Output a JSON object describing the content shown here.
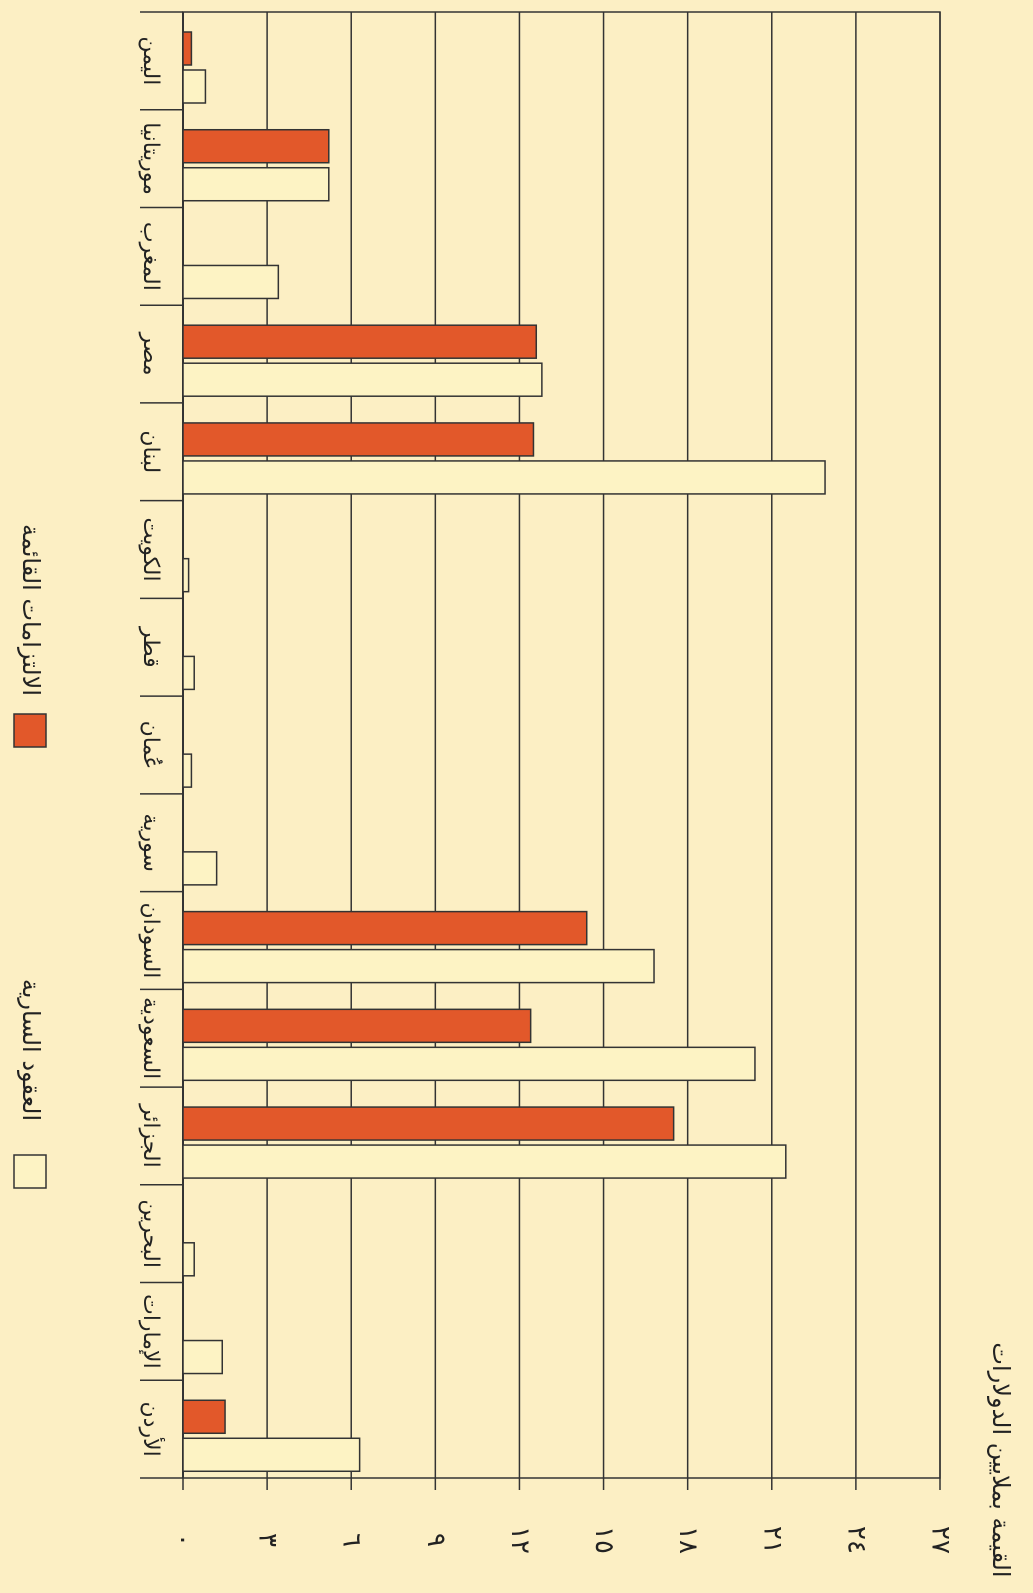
{
  "chart_data": {
    "type": "bar",
    "orientation": "horizontal",
    "axis_title": "القيمة بملايين الدولارات",
    "categories": [
      "اليمن",
      "موريتانيا",
      "المغرب",
      "مصر",
      "لبنان",
      "الكويت",
      "قطر",
      "عُمان",
      "سورية",
      "السودان",
      "السعودية",
      "الجزائر",
      "البحرين",
      "الإمارات",
      "الأردن"
    ],
    "series": [
      {
        "name": "الالتزامات القائمة",
        "color": "#e2582a",
        "values": [
          0.3,
          5.2,
          null,
          12.6,
          12.5,
          null,
          null,
          null,
          null,
          14.4,
          12.4,
          17.5,
          null,
          null,
          1.5
        ]
      },
      {
        "name": "العقود السارية",
        "color": "#fdf3c4",
        "values": [
          0.8,
          5.2,
          3.4,
          12.8,
          22.9,
          0.2,
          0.4,
          0.3,
          1.2,
          16.8,
          20.4,
          21.5,
          0.4,
          1.4,
          6.3
        ]
      }
    ],
    "xlim": [
      0,
      27
    ],
    "xticks": [
      {
        "value": 0,
        "label": "٠"
      },
      {
        "value": 3,
        "label": "٣"
      },
      {
        "value": 6,
        "label": "٦"
      },
      {
        "value": 9,
        "label": "٩"
      },
      {
        "value": 12,
        "label": "١٢"
      },
      {
        "value": 15,
        "label": "١٥"
      },
      {
        "value": 18,
        "label": "١٨"
      },
      {
        "value": 21,
        "label": "٢١"
      },
      {
        "value": 24,
        "label": "٢٤"
      },
      {
        "value": 27,
        "label": "٢٧"
      }
    ],
    "grid": true
  }
}
